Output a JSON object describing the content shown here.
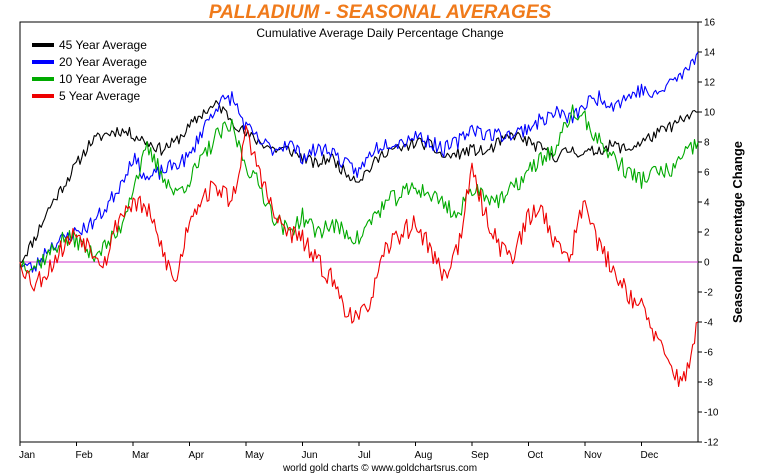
{
  "chart_data": {
    "type": "line",
    "title": "PALLADIUM - SEASONAL AVERAGES",
    "subtitle": "Cumulative Average Daily Percentage Change",
    "ylabel": "Seasonal Percentage Change",
    "footer": "world gold charts © www.goldchartsrus.com",
    "x_tick_labels": [
      "Jan",
      "Feb",
      "Mar",
      "Apr",
      "May",
      "Jun",
      "Jul",
      "Aug",
      "Sep",
      "Oct",
      "Nov",
      "Dec"
    ],
    "y_ticks": [
      16,
      14,
      12,
      10,
      8,
      6,
      4,
      2,
      0,
      -2,
      -4,
      -6,
      -8,
      -10,
      -12
    ],
    "ylim": [
      -12,
      16
    ],
    "grid": false,
    "zero_line": true,
    "zero_line_color": "#cc33cc",
    "legend_position": "top-left",
    "title_color": "#f07a1a",
    "series": [
      {
        "name": "45 Year Average",
        "color": "#000000",
        "anchors": [
          [
            0,
            0
          ],
          [
            0.25,
            1.5
          ],
          [
            0.5,
            3.5
          ],
          [
            0.75,
            5
          ],
          [
            1.0,
            6.5
          ],
          [
            1.25,
            8
          ],
          [
            1.5,
            8.5
          ],
          [
            1.75,
            8.8
          ],
          [
            2.0,
            8.5
          ],
          [
            2.25,
            8
          ],
          [
            2.5,
            7.5
          ],
          [
            2.75,
            8
          ],
          [
            3.0,
            9
          ],
          [
            3.25,
            10
          ],
          [
            3.5,
            10.5
          ],
          [
            3.75,
            9.5
          ],
          [
            4.0,
            8.5
          ],
          [
            4.25,
            8
          ],
          [
            4.5,
            7.5
          ],
          [
            4.75,
            7.5
          ],
          [
            5.0,
            7
          ],
          [
            5.25,
            6.5
          ],
          [
            5.5,
            7
          ],
          [
            5.75,
            6
          ],
          [
            6.0,
            5.5
          ],
          [
            6.25,
            6.5
          ],
          [
            6.5,
            7.5
          ],
          [
            6.75,
            7.5
          ],
          [
            7.0,
            8
          ],
          [
            7.25,
            7.8
          ],
          [
            7.5,
            7
          ],
          [
            7.75,
            7.2
          ],
          [
            8.0,
            7.5
          ],
          [
            8.25,
            7.3
          ],
          [
            8.5,
            8
          ],
          [
            8.75,
            8.5
          ],
          [
            9.0,
            8
          ],
          [
            9.25,
            7.5
          ],
          [
            9.5,
            7
          ],
          [
            9.75,
            7.5
          ],
          [
            10.0,
            7.2
          ],
          [
            10.25,
            7.5
          ],
          [
            10.5,
            7.8
          ],
          [
            10.75,
            7.5
          ],
          [
            11.0,
            8
          ],
          [
            11.25,
            8.5
          ],
          [
            11.5,
            9
          ],
          [
            11.75,
            9.5
          ],
          [
            12.0,
            10
          ]
        ],
        "noise": 0.4,
        "seed": 11
      },
      {
        "name": "20 Year Average",
        "color": "#0000ff",
        "anchors": [
          [
            0,
            0
          ],
          [
            0.25,
            -0.5
          ],
          [
            0.5,
            1
          ],
          [
            0.75,
            1.5
          ],
          [
            1.0,
            2
          ],
          [
            1.25,
            2.5
          ],
          [
            1.5,
            3.5
          ],
          [
            1.75,
            5
          ],
          [
            2.0,
            7
          ],
          [
            2.25,
            5.5
          ],
          [
            2.5,
            6
          ],
          [
            2.75,
            6.5
          ],
          [
            3.0,
            7
          ],
          [
            3.25,
            9
          ],
          [
            3.5,
            10.5
          ],
          [
            3.75,
            11
          ],
          [
            4.0,
            9
          ],
          [
            4.25,
            8
          ],
          [
            4.5,
            7.5
          ],
          [
            4.75,
            8
          ],
          [
            5.0,
            7
          ],
          [
            5.25,
            7.5
          ],
          [
            5.5,
            7.5
          ],
          [
            5.75,
            6.5
          ],
          [
            6.0,
            6
          ],
          [
            6.25,
            7.5
          ],
          [
            6.5,
            8
          ],
          [
            6.75,
            8
          ],
          [
            7.0,
            8.5
          ],
          [
            7.25,
            8
          ],
          [
            7.5,
            7.5
          ],
          [
            7.75,
            8
          ],
          [
            8.0,
            9
          ],
          [
            8.25,
            8.5
          ],
          [
            8.5,
            8.5
          ],
          [
            8.75,
            8.5
          ],
          [
            9.0,
            9
          ],
          [
            9.25,
            9.5
          ],
          [
            9.5,
            10
          ],
          [
            9.75,
            9.5
          ],
          [
            10.0,
            10.5
          ],
          [
            10.25,
            11
          ],
          [
            10.5,
            10.5
          ],
          [
            10.75,
            11
          ],
          [
            11.0,
            11.5
          ],
          [
            11.25,
            11
          ],
          [
            11.5,
            12
          ],
          [
            11.75,
            12.5
          ],
          [
            12.0,
            14
          ]
        ],
        "noise": 0.5,
        "seed": 23
      },
      {
        "name": "10 Year Average",
        "color": "#00aa00",
        "anchors": [
          [
            0,
            0
          ],
          [
            0.25,
            -0.3
          ],
          [
            0.5,
            0.5
          ],
          [
            0.75,
            1.5
          ],
          [
            1.0,
            1.5
          ],
          [
            1.25,
            0.5
          ],
          [
            1.5,
            1
          ],
          [
            1.75,
            2
          ],
          [
            2.0,
            5
          ],
          [
            2.25,
            7.5
          ],
          [
            2.5,
            6
          ],
          [
            2.75,
            4.5
          ],
          [
            3.0,
            5.5
          ],
          [
            3.25,
            7
          ],
          [
            3.5,
            8.5
          ],
          [
            3.75,
            9
          ],
          [
            4.0,
            6.5
          ],
          [
            4.25,
            5
          ],
          [
            4.5,
            3
          ],
          [
            4.75,
            2
          ],
          [
            5.0,
            3
          ],
          [
            5.25,
            2
          ],
          [
            5.5,
            2.5
          ],
          [
            5.75,
            2
          ],
          [
            6.0,
            1.5
          ],
          [
            6.25,
            3
          ],
          [
            6.5,
            4
          ],
          [
            6.75,
            4.5
          ],
          [
            7.0,
            5
          ],
          [
            7.25,
            4.5
          ],
          [
            7.5,
            4
          ],
          [
            7.75,
            3
          ],
          [
            8.0,
            5
          ],
          [
            8.25,
            4.5
          ],
          [
            8.5,
            4
          ],
          [
            8.75,
            5
          ],
          [
            9.0,
            6
          ],
          [
            9.25,
            7
          ],
          [
            9.5,
            7.5
          ],
          [
            9.75,
            10
          ],
          [
            10.0,
            9.5
          ],
          [
            10.25,
            8
          ],
          [
            10.5,
            7
          ],
          [
            10.75,
            6
          ],
          [
            11.0,
            5.5
          ],
          [
            11.25,
            6
          ],
          [
            11.5,
            6
          ],
          [
            11.75,
            7
          ],
          [
            12.0,
            8
          ]
        ],
        "noise": 0.6,
        "seed": 37
      },
      {
        "name": "5 Year Average",
        "color": "#ee0000",
        "anchors": [
          [
            0,
            0
          ],
          [
            0.25,
            -1.5
          ],
          [
            0.5,
            -0.5
          ],
          [
            0.75,
            1
          ],
          [
            1.0,
            2
          ],
          [
            1.25,
            1
          ],
          [
            1.5,
            0
          ],
          [
            1.75,
            3
          ],
          [
            2.0,
            4
          ],
          [
            2.25,
            3.5
          ],
          [
            2.5,
            1
          ],
          [
            2.75,
            -1.5
          ],
          [
            3.0,
            3
          ],
          [
            3.25,
            4.5
          ],
          [
            3.5,
            5
          ],
          [
            3.75,
            4
          ],
          [
            4.0,
            8.5
          ],
          [
            4.25,
            6
          ],
          [
            4.5,
            3
          ],
          [
            4.75,
            2
          ],
          [
            5.0,
            1.5
          ],
          [
            5.25,
            0
          ],
          [
            5.5,
            -1
          ],
          [
            5.75,
            -3
          ],
          [
            6.0,
            -4
          ],
          [
            6.25,
            -2
          ],
          [
            6.5,
            1
          ],
          [
            6.75,
            2
          ],
          [
            7.0,
            2.5
          ],
          [
            7.25,
            1
          ],
          [
            7.5,
            -1
          ],
          [
            7.75,
            1
          ],
          [
            8.0,
            6
          ],
          [
            8.25,
            3
          ],
          [
            8.5,
            1
          ],
          [
            8.75,
            0.5
          ],
          [
            9.0,
            3
          ],
          [
            9.25,
            3.5
          ],
          [
            9.5,
            1
          ],
          [
            9.75,
            0.5
          ],
          [
            10.0,
            4.5
          ],
          [
            10.25,
            1
          ],
          [
            10.5,
            -0.5
          ],
          [
            10.75,
            -2
          ],
          [
            11.0,
            -3
          ],
          [
            11.25,
            -5
          ],
          [
            11.5,
            -7
          ],
          [
            11.75,
            -8
          ],
          [
            12.0,
            -4
          ]
        ],
        "noise": 0.7,
        "seed": 53
      }
    ]
  }
}
